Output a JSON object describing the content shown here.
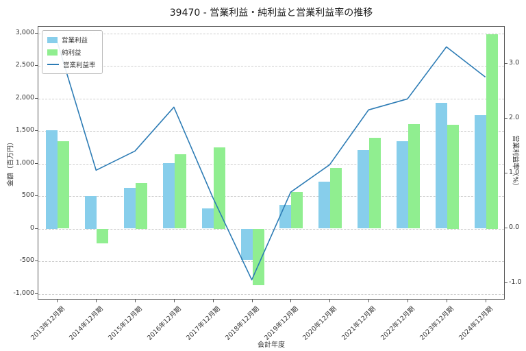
{
  "title": "39470 - 営業利益・純利益と営業利益率の推移",
  "axes": {
    "xlabel": "会計年度",
    "ylabel_left": "金額（百万円）",
    "ylabel_right": "営業利益率（%）"
  },
  "colors": {
    "bar_operating_profit": "#87ceeb",
    "bar_net_profit": "#90ee90",
    "line_operating_margin": "#2d7cb5",
    "grid": "#cccccc",
    "spine": "#555555",
    "text": "#333333",
    "background": "#ffffff"
  },
  "legend": {
    "labels": [
      "営業利益",
      "純利益",
      "営業利益率"
    ]
  },
  "chart_data": {
    "type": "bar+line",
    "title": "39470 - 営業利益・純利益と営業利益率の推移",
    "xlabel": "会計年度",
    "ylabel_left": "金額（百万円）",
    "ylabel_right": "営業利益率（%）",
    "grid": "horizontal-dashed",
    "legend_position": "upper-left",
    "categories": [
      "2013年12月期",
      "2014年12月期",
      "2015年12月期",
      "2016年12月期",
      "2017年12月期",
      "2018年12月期",
      "2019年12月期",
      "2020年12月期",
      "2021年12月期",
      "2022年12月期",
      "2023年12月期",
      "2024年12月期"
    ],
    "series": [
      {
        "id": "operating-profit",
        "name": "営業利益",
        "kind": "bar",
        "axis": "left",
        "color": "#87ceeb",
        "values": [
          1510,
          500,
          630,
          1010,
          310,
          -480,
          360,
          720,
          1210,
          1340,
          1930,
          1740
        ]
      },
      {
        "id": "net-profit",
        "name": "純利益",
        "kind": "bar",
        "axis": "left",
        "color": "#90ee90",
        "values": [
          1340,
          -230,
          700,
          1140,
          1250,
          -870,
          560,
          930,
          1390,
          1610,
          1600,
          2990
        ]
      },
      {
        "id": "operating-margin",
        "name": "営業利益率",
        "kind": "line",
        "axis": "right",
        "color": "#2d7cb5",
        "values": [
          3.4,
          1.05,
          1.4,
          2.2,
          0.55,
          -0.95,
          0.65,
          1.15,
          2.15,
          2.35,
          3.3,
          2.75
        ]
      }
    ],
    "left_axis": {
      "min": -1100,
      "max": 3100,
      "ticks": [
        3000,
        2500,
        2000,
        1500,
        1000,
        500,
        0,
        -500,
        -1000
      ],
      "tick_labels": [
        "3,000",
        "2,500",
        "2,000",
        "1,500",
        "1,000",
        "500",
        "0",
        "-500",
        "-1,000"
      ]
    },
    "right_axis": {
      "min": -1.31,
      "max": 3.68,
      "ticks": [
        3.0,
        2.0,
        1.0,
        0.0,
        -1.0
      ],
      "tick_labels": [
        "3.0",
        "2.0",
        "1.0",
        "0.0",
        "-1.0"
      ]
    }
  }
}
